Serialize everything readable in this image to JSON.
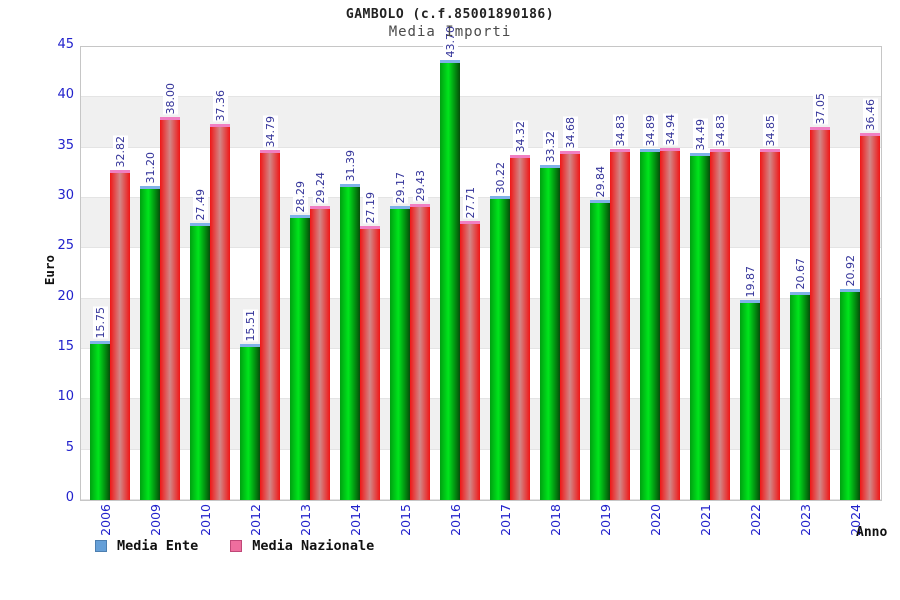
{
  "chart_data": {
    "type": "bar",
    "title": "GAMBOLO (c.f.85001890186)",
    "subtitle": "Media Importi",
    "xlabel": "Anno",
    "ylabel": "Euro",
    "ylim": [
      0,
      45
    ],
    "ytick_step": 5,
    "grid": true,
    "legend_position": "bottom-left",
    "categories": [
      "2006",
      "2009",
      "2010",
      "2012",
      "2013",
      "2014",
      "2015",
      "2016",
      "2017",
      "2018",
      "2019",
      "2020",
      "2021",
      "2022",
      "2023",
      "2024"
    ],
    "series": [
      {
        "name": "Media Ente",
        "values": [
          15.75,
          31.2,
          27.49,
          15.51,
          28.29,
          31.39,
          29.17,
          43.7,
          30.22,
          33.32,
          29.84,
          34.89,
          34.49,
          19.87,
          20.67,
          20.92
        ],
        "bar_gradient": [
          "#00a011",
          "#00e51c",
          "#054d08"
        ],
        "cap_color": "#7fb2e8",
        "legend_color": "#66a0d8",
        "legend_border": "#4d7fb0"
      },
      {
        "name": "Media Nazionale",
        "values": [
          32.82,
          38.0,
          37.36,
          34.79,
          29.24,
          27.19,
          29.43,
          27.71,
          34.32,
          34.68,
          34.83,
          34.94,
          34.83,
          34.85,
          37.05,
          36.46
        ],
        "bar_gradient": [
          "#f01616",
          "#d28787",
          "#f01616"
        ],
        "cap_color": "#f07fc2",
        "legend_color": "#ee6e9e",
        "legend_border": "#c04878"
      }
    ],
    "colors": {
      "tick_label": "#2222cc",
      "value_label": "#333399",
      "band_gray": "#f0f0f0",
      "band_white": "#ffffff",
      "grid_line": "#e4e4e4",
      "plot_border": "#c6c6c6"
    }
  }
}
